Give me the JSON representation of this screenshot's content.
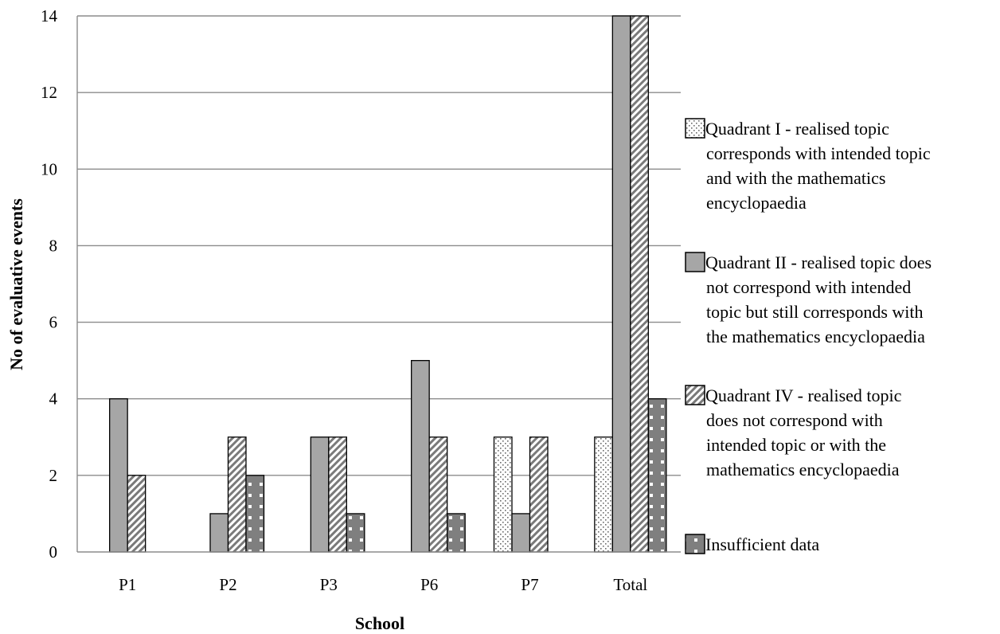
{
  "chart_data": {
    "type": "bar",
    "categories": [
      "P1",
      "P2",
      "P3",
      "P6",
      "P7",
      "Total"
    ],
    "series": [
      {
        "name": "Quadrant I - realised topic corresponds with intended topic and with the mathematics encyclopaedia",
        "values": [
          0,
          0,
          0,
          0,
          3,
          3
        ],
        "pattern": "dots"
      },
      {
        "name": "Quadrant II - realised topic does not correspond with intended topic but still corresponds with the mathematics encyclopaedia",
        "values": [
          4,
          1,
          3,
          5,
          1,
          14
        ],
        "pattern": "solid"
      },
      {
        "name": "Quadrant IV - realised topic does not correspond with intended topic or with the mathematics encyclopaedia",
        "values": [
          2,
          3,
          3,
          3,
          3,
          14
        ],
        "pattern": "diagonal"
      },
      {
        "name": "Insufficient data",
        "values": [
          0,
          2,
          1,
          1,
          0,
          4
        ],
        "pattern": "squares"
      }
    ],
    "legend_lines": [
      [
        "Quadrant I - realised topic",
        "corresponds with intended topic",
        "and with the mathematics",
        "encyclopaedia"
      ],
      [
        "Quadrant II - realised topic does",
        "not correspond with intended",
        "topic but still corresponds with",
        "the mathematics encyclopaedia"
      ],
      [
        "Quadrant IV - realised topic",
        "does not correspond with",
        "intended topic or with the",
        "mathematics encyclopaedia"
      ],
      [
        "Insufficient data"
      ]
    ],
    "xlabel": "School",
    "ylabel": "No of evaluative events",
    "ylim": [
      0,
      14
    ],
    "yticks": [
      0,
      2,
      4,
      6,
      8,
      10,
      12,
      14
    ],
    "grid": true,
    "legend_position": "right",
    "colors": {
      "bar_fill": "#a6a6a6",
      "light_fill": "#ffffff",
      "dark_fill": "#7f7f7f",
      "stroke": "#000000",
      "grid": "#8c8c8c"
    }
  }
}
